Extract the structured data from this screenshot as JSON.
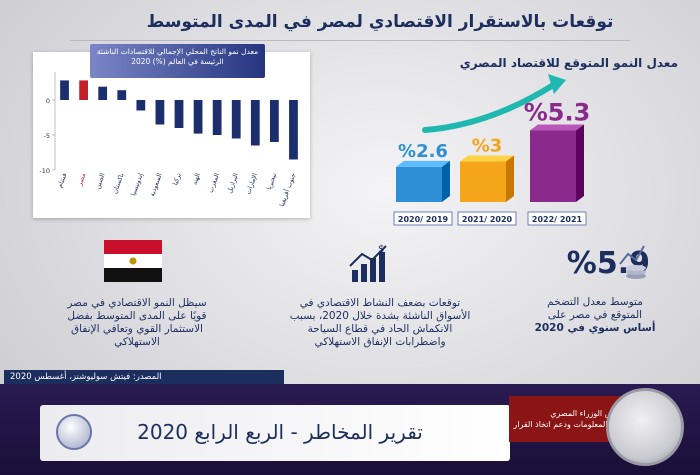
{
  "page_title": "توقعات بالاستقرار الاقتصادي لمصر في المدى المتوسط",
  "chart_data": [
    {
      "type": "bar",
      "title": "معدل نمو الناتج المحلي الإجمالي للاقتصادات الناشئة الرئيسة في العالم (%) 2020",
      "categories": [
        "فيتنام",
        "مصر",
        "الصين",
        "باكستان",
        "إندونيسيا",
        "السعودية",
        "تركيا",
        "الهند",
        "المغرب",
        "البرازيل",
        "الإمارات",
        "نيجيريا",
        "جنوب أفريقيا"
      ],
      "values": [
        2.8,
        2.8,
        1.9,
        1.4,
        -1.5,
        -3.5,
        -4.0,
        -4.8,
        -5.0,
        -5.5,
        -6.5,
        -6.0,
        -8.5
      ],
      "highlight_category": "مصر",
      "ylim": [
        -10,
        4
      ],
      "yticks": [
        0,
        -5,
        -10
      ],
      "colors": {
        "default": "#1c2e6e",
        "highlight": "#c21f2b"
      }
    },
    {
      "type": "bar",
      "title": "معدل النمو المتوقع للاقتصاد المصري",
      "categories": [
        "2020/ 2019",
        "2021/ 2020",
        "2022/ 2021"
      ],
      "values": [
        2.6,
        3,
        5.3
      ],
      "value_labels": [
        "%2.6",
        "%3",
        "%5.3"
      ],
      "colors": [
        "#2e8fd6",
        "#f5a51a",
        "#8a2a8c"
      ]
    }
  ],
  "inflation": {
    "value": "%5.9",
    "text_lines": [
      "متوسط معدل التضخم",
      "المتوقع في مصر على",
      "أساس سنوي في 2020"
    ]
  },
  "activity_text": [
    "توقعات بضعف النشاط الاقتصادي في",
    "الأسواق الناشئة بشدة خلال 2020، بسبب",
    "الانكماش الحاد في قطاع السياحة",
    "واضطرابات الإنفاق الاستهلاكي"
  ],
  "egypt_text": [
    "سيظل النمو الاقتصادي في مصر",
    "قويًا على المدى المتوسط بفضل",
    "الاستثمار القوي وتعافي الإنفاق",
    "الاستهلاكي"
  ],
  "source": "المصدر: فيتش سوليوشنز، أغسطس 2020",
  "report_title": "تقرير المخاطر - الربع الرابع 2020",
  "brand": [
    "مجلس الوزراء المصري",
    "مركز المعلومات ودعم اتخاذ القرار"
  ]
}
